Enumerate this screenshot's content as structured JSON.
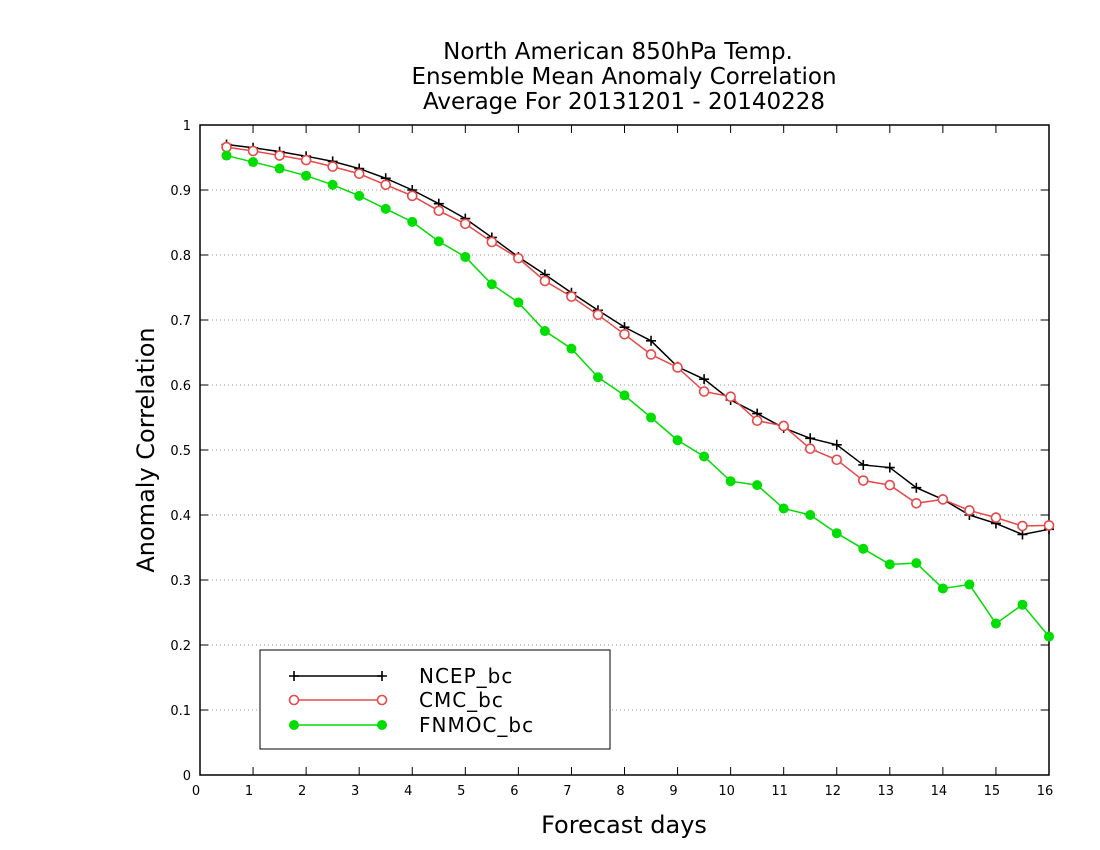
{
  "chart_data": {
    "type": "line",
    "title_lines": [
      "North American 850hPa Temp.",
      "Ensemble Mean Anomaly Correlation",
      "Average For 20131201 - 20140228"
    ],
    "xlabel": "Forecast days",
    "ylabel": "Anomaly Correlation",
    "xlim": [
      0,
      16
    ],
    "ylim": [
      0,
      1
    ],
    "x_ticks": [
      "0",
      "1",
      "2",
      "3",
      "4",
      "5",
      "6",
      "7",
      "8",
      "9",
      "10",
      "11",
      "12",
      "13",
      "14",
      "15",
      "16"
    ],
    "y_ticks": [
      "0",
      "0.1",
      "0.2",
      "0.3",
      "0.4",
      "0.5",
      "0.6",
      "0.7",
      "0.8",
      "0.9",
      "1"
    ],
    "grid": "dotted horizontal",
    "legend_position": "bottom-left",
    "x": [
      0.5,
      1,
      1.5,
      2,
      2.5,
      3,
      3.5,
      4,
      4.5,
      5,
      5.5,
      6,
      6.5,
      7,
      7.5,
      8,
      8.5,
      9,
      9.5,
      10,
      10.5,
      11,
      11.5,
      12,
      12.5,
      13,
      13.5,
      14,
      14.5,
      15,
      15.5,
      16
    ],
    "series": [
      {
        "name": "NCEP_bc",
        "color": "#000000",
        "marker": "plus",
        "values": [
          0.97,
          0.965,
          0.959,
          0.952,
          0.944,
          0.933,
          0.918,
          0.9,
          0.879,
          0.856,
          0.827,
          0.797,
          0.77,
          0.742,
          0.715,
          0.689,
          0.668,
          0.628,
          0.609,
          0.577,
          0.556,
          0.534,
          0.518,
          0.508,
          0.477,
          0.473,
          0.442,
          0.424,
          0.4,
          0.387,
          0.37,
          0.378
        ]
      },
      {
        "name": "CMC_bc",
        "color": "#e84848",
        "marker": "open-circle",
        "values": [
          0.966,
          0.96,
          0.953,
          0.946,
          0.936,
          0.925,
          0.908,
          0.891,
          0.868,
          0.848,
          0.82,
          0.795,
          0.76,
          0.736,
          0.708,
          0.678,
          0.647,
          0.627,
          0.59,
          0.582,
          0.545,
          0.537,
          0.502,
          0.485,
          0.453,
          0.446,
          0.418,
          0.424,
          0.407,
          0.396,
          0.383,
          0.384
        ]
      },
      {
        "name": "FNMOC_bc",
        "color": "#00dd00",
        "marker": "filled-circle",
        "values": [
          0.953,
          0.943,
          0.933,
          0.922,
          0.908,
          0.891,
          0.871,
          0.851,
          0.821,
          0.797,
          0.755,
          0.727,
          0.683,
          0.656,
          0.612,
          0.584,
          0.55,
          0.515,
          0.49,
          0.452,
          0.446,
          0.41,
          0.4,
          0.372,
          0.348,
          0.324,
          0.326,
          0.287,
          0.293,
          0.233,
          0.262,
          0.213
        ]
      }
    ]
  }
}
